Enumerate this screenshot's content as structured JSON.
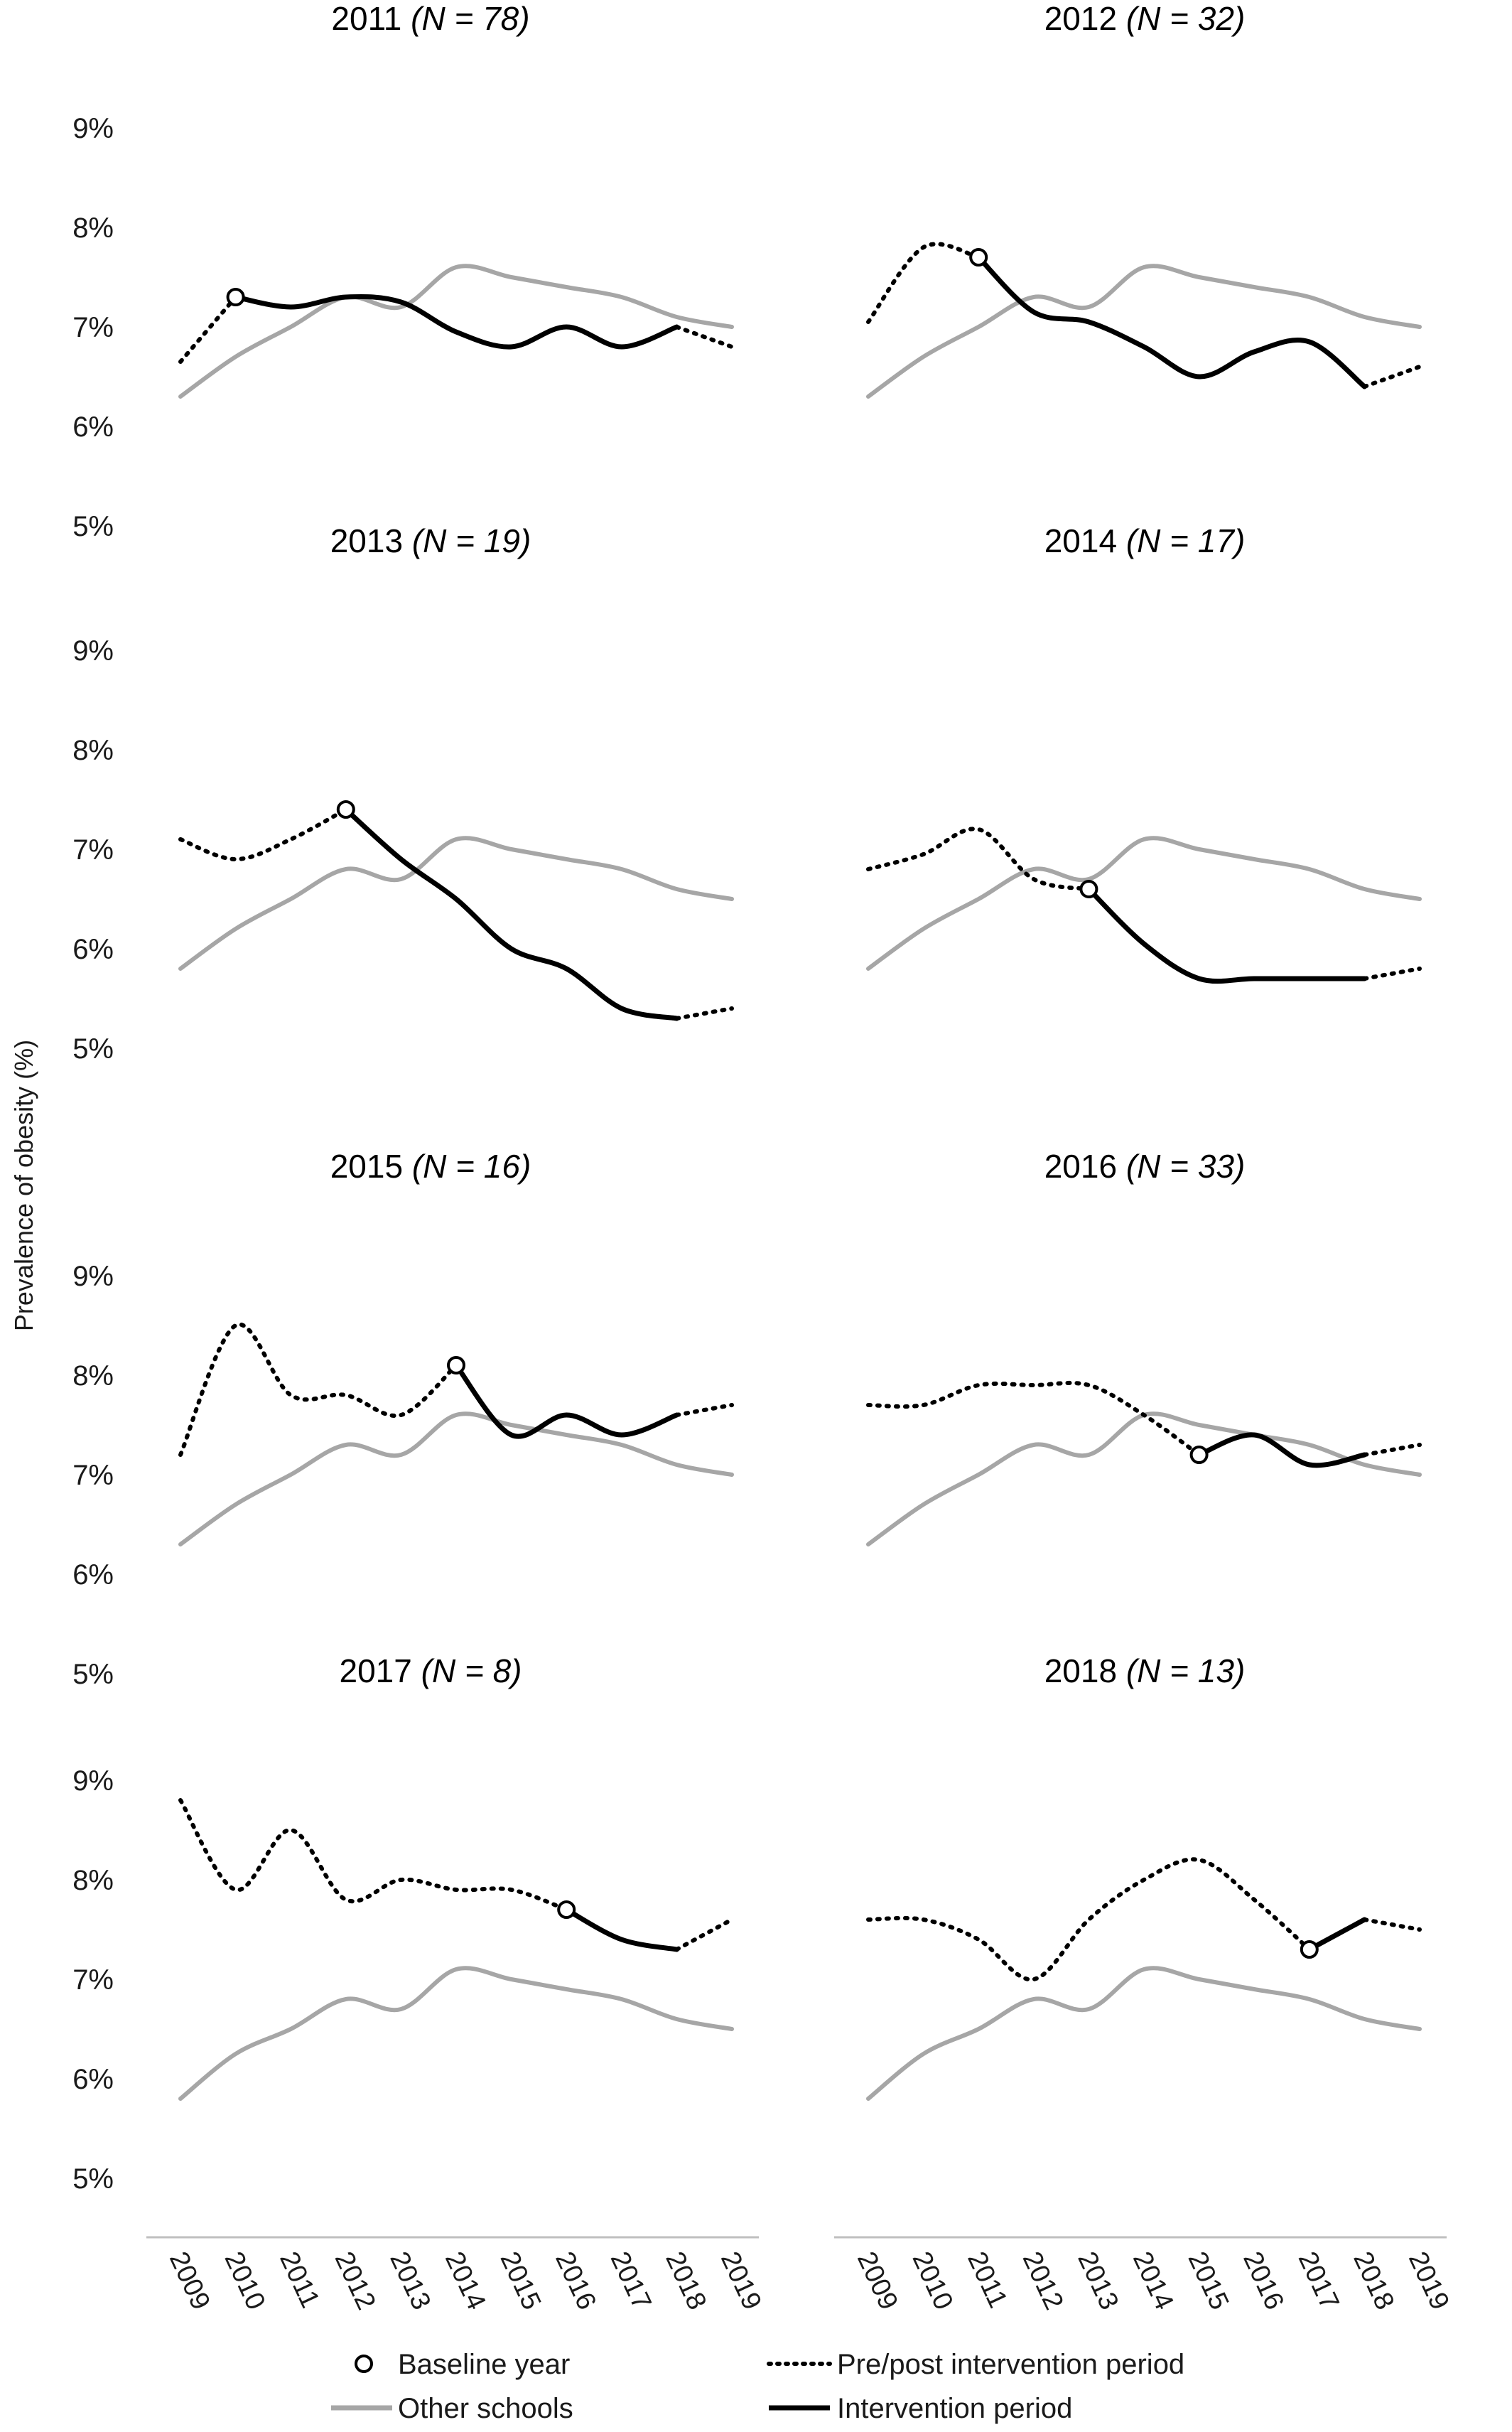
{
  "figure": {
    "ylabel": "Prevalence of obesity (%)",
    "legend": {
      "baseline": "Baseline year",
      "prepost": "Pre/post intervention period",
      "other": "Other schools",
      "intervention": "Intervention period"
    },
    "colors": {
      "school": "#000000",
      "other": "#a6a6a6",
      "axis": "#bfbfbf"
    }
  },
  "chart_data": [
    {
      "type": "line",
      "title_main": "2011",
      "title_n": "(N = 78)",
      "x": [
        2009,
        2010,
        2011,
        2012,
        2013,
        2014,
        2015,
        2016,
        2017,
        2018,
        2019
      ],
      "ylim": [
        5,
        9
      ],
      "yticks": [
        "5%",
        "6%",
        "7%",
        "8%",
        "9%"
      ],
      "baseline_year": 2010,
      "intervention_end": 2018,
      "series": [
        {
          "name": "Other schools",
          "values": [
            6.3,
            6.7,
            7.0,
            7.3,
            7.2,
            7.6,
            7.5,
            7.4,
            7.3,
            7.1,
            7.0
          ]
        },
        {
          "name": "Intervention period",
          "values": [
            6.65,
            7.3,
            7.2,
            7.3,
            7.25,
            6.95,
            6.8,
            7.0,
            6.8,
            7.0,
            6.8
          ]
        }
      ]
    },
    {
      "type": "line",
      "title_main": "2012",
      "title_n": "(N = 32)",
      "x": [
        2009,
        2010,
        2011,
        2012,
        2013,
        2014,
        2015,
        2016,
        2017,
        2018,
        2019
      ],
      "ylim": [
        5,
        9
      ],
      "yticks": [
        "5%",
        "6%",
        "7%",
        "8%",
        "9%"
      ],
      "baseline_year": 2011,
      "intervention_end": 2018,
      "series": [
        {
          "name": "Other schools",
          "values": [
            6.3,
            6.7,
            7.0,
            7.3,
            7.2,
            7.6,
            7.5,
            7.4,
            7.3,
            7.1,
            7.0
          ]
        },
        {
          "name": "Intervention period",
          "values": [
            7.05,
            7.8,
            7.7,
            7.15,
            7.05,
            6.8,
            6.5,
            6.75,
            6.85,
            6.4,
            6.6
          ]
        }
      ]
    },
    {
      "type": "line",
      "title_main": "2013",
      "title_n": "(N = 19)",
      "x": [
        2009,
        2010,
        2011,
        2012,
        2013,
        2014,
        2015,
        2016,
        2017,
        2018,
        2019
      ],
      "ylim": [
        5,
        9
      ],
      "yticks": [
        "5%",
        "6%",
        "7%",
        "8%",
        "9%"
      ],
      "baseline_year": 2012,
      "intervention_end": 2018,
      "series": [
        {
          "name": "Other schools",
          "values": [
            5.8,
            6.2,
            6.5,
            6.8,
            6.7,
            7.1,
            7.0,
            6.9,
            6.8,
            6.6,
            6.5
          ]
        },
        {
          "name": "Intervention period",
          "values": [
            7.1,
            6.9,
            7.1,
            7.4,
            6.9,
            6.5,
            6.0,
            5.8,
            5.4,
            5.3,
            5.4
          ]
        }
      ]
    },
    {
      "type": "line",
      "title_main": "2014",
      "title_n": "(N = 17)",
      "x": [
        2009,
        2010,
        2011,
        2012,
        2013,
        2014,
        2015,
        2016,
        2017,
        2018,
        2019
      ],
      "ylim": [
        5,
        9
      ],
      "yticks": [
        "5%",
        "6%",
        "7%",
        "8%",
        "9%"
      ],
      "baseline_year": 2013,
      "intervention_end": 2018,
      "series": [
        {
          "name": "Other schools",
          "values": [
            5.8,
            6.2,
            6.5,
            6.8,
            6.7,
            7.1,
            7.0,
            6.9,
            6.8,
            6.6,
            6.5
          ]
        },
        {
          "name": "Intervention period",
          "values": [
            6.8,
            6.95,
            7.2,
            6.7,
            6.6,
            6.05,
            5.7,
            5.7,
            5.7,
            5.7,
            5.8
          ]
        }
      ]
    },
    {
      "type": "line",
      "title_main": "2015",
      "title_n": "(N = 16)",
      "x": [
        2009,
        2010,
        2011,
        2012,
        2013,
        2014,
        2015,
        2016,
        2017,
        2018,
        2019
      ],
      "ylim": [
        5,
        9
      ],
      "yticks": [
        "5%",
        "6%",
        "7%",
        "8%",
        "9%"
      ],
      "baseline_year": 2014,
      "intervention_end": 2018,
      "series": [
        {
          "name": "Other schools",
          "values": [
            6.3,
            6.7,
            7.0,
            7.3,
            7.2,
            7.6,
            7.5,
            7.4,
            7.3,
            7.1,
            7.0
          ]
        },
        {
          "name": "Intervention period",
          "values": [
            7.2,
            8.5,
            7.8,
            7.8,
            7.6,
            8.1,
            7.4,
            7.6,
            7.4,
            7.6,
            7.7
          ]
        }
      ]
    },
    {
      "type": "line",
      "title_main": "2016",
      "title_n": "(N = 33)",
      "x": [
        2009,
        2010,
        2011,
        2012,
        2013,
        2014,
        2015,
        2016,
        2017,
        2018,
        2019
      ],
      "ylim": [
        5,
        9
      ],
      "yticks": [
        "5%",
        "6%",
        "7%",
        "8%",
        "9%"
      ],
      "baseline_year": 2015,
      "intervention_end": 2018,
      "series": [
        {
          "name": "Other schools",
          "values": [
            6.3,
            6.7,
            7.0,
            7.3,
            7.2,
            7.6,
            7.5,
            7.4,
            7.3,
            7.1,
            7.0
          ]
        },
        {
          "name": "Intervention period",
          "values": [
            7.7,
            7.7,
            7.9,
            7.9,
            7.9,
            7.6,
            7.2,
            7.4,
            7.1,
            7.2,
            7.3
          ]
        }
      ]
    },
    {
      "type": "line",
      "title_main": "2017",
      "title_n": "(N = 8)",
      "x": [
        2009,
        2010,
        2011,
        2012,
        2013,
        2014,
        2015,
        2016,
        2017,
        2018,
        2019
      ],
      "ylim": [
        5,
        9
      ],
      "yticks": [
        "5%",
        "6%",
        "7%",
        "8%",
        "9%"
      ],
      "baseline_year": 2016,
      "intervention_end": 2018,
      "series": [
        {
          "name": "Other schools",
          "values": [
            5.8,
            6.25,
            6.5,
            6.8,
            6.7,
            7.1,
            7.0,
            6.9,
            6.8,
            6.6,
            6.5
          ]
        },
        {
          "name": "Intervention period",
          "values": [
            8.8,
            7.9,
            8.5,
            7.8,
            8.0,
            7.9,
            7.9,
            7.7,
            7.4,
            7.3,
            7.6
          ]
        }
      ]
    },
    {
      "type": "line",
      "title_main": "2018",
      "title_n": "(N = 13)",
      "x": [
        2009,
        2010,
        2011,
        2012,
        2013,
        2014,
        2015,
        2016,
        2017,
        2018,
        2019
      ],
      "ylim": [
        5,
        9
      ],
      "yticks": [
        "5%",
        "6%",
        "7%",
        "8%",
        "9%"
      ],
      "baseline_year": 2017,
      "intervention_end": 2018,
      "series": [
        {
          "name": "Other schools",
          "values": [
            5.8,
            6.25,
            6.5,
            6.8,
            6.7,
            7.1,
            7.0,
            6.9,
            6.8,
            6.6,
            6.5
          ]
        },
        {
          "name": "Intervention period",
          "values": [
            7.6,
            7.6,
            7.4,
            7.0,
            7.6,
            8.0,
            8.2,
            7.8,
            7.3,
            7.6,
            7.5
          ]
        }
      ]
    }
  ]
}
